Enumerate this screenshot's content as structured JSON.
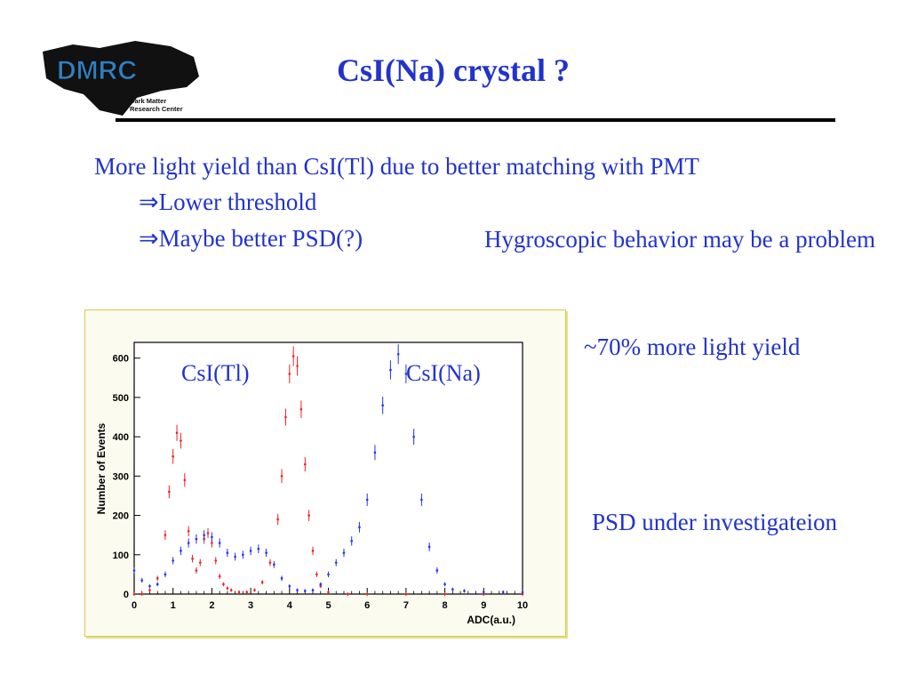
{
  "slide": {
    "title": "CsI(Na) crystal ?",
    "logo_text": "DMRC",
    "logo_subtitle_1": "Dark Matter",
    "logo_subtitle_2": "Research Center",
    "line1": "More light yield than CsI(Tl) due to better matching with PMT",
    "line2": "⇒Lower threshold",
    "line3": "⇒Maybe better PSD(?)",
    "hygro": "Hygroscopic behavior may be a problem",
    "yield": "~70% more light yield",
    "psd": "PSD under investigateion"
  },
  "colors": {
    "text": "#2233cc",
    "series_tl": "#ee2222",
    "series_na": "#2233ee",
    "logo_blue": "#2f7fc0"
  },
  "chart_data": {
    "type": "scatter",
    "xlabel": "ADC(a.u.)",
    "ylabel": "Number of Events",
    "xlim": [
      0,
      10
    ],
    "ylim": [
      0,
      640
    ],
    "xticks": [
      "0",
      "1",
      "2",
      "3",
      "4",
      "5",
      "6",
      "7",
      "8",
      "9",
      "10"
    ],
    "yticks": [
      "0",
      "100",
      "200",
      "300",
      "400",
      "500",
      "600"
    ],
    "annotations": [
      "CsI(Tl)",
      "CsI(Na)"
    ],
    "series": [
      {
        "name": "CsI(Tl)",
        "x": [
          0.0,
          0.2,
          0.4,
          0.6,
          0.8,
          0.9,
          1.0,
          1.1,
          1.2,
          1.3,
          1.4,
          1.5,
          1.6,
          1.7,
          1.8,
          1.9,
          2.0,
          2.1,
          2.2,
          2.3,
          2.4,
          2.5,
          2.7,
          2.9,
          3.1,
          3.3,
          3.5,
          3.7,
          3.8,
          3.9,
          4.0,
          4.1,
          4.2,
          4.3,
          4.4,
          4.5,
          4.6,
          4.7,
          4.8,
          5.0,
          5.5,
          6.0,
          7.0,
          8.0,
          9.0,
          10.0
        ],
        "y": [
          0,
          0,
          10,
          40,
          150,
          260,
          350,
          410,
          390,
          290,
          160,
          90,
          60,
          80,
          140,
          155,
          130,
          85,
          45,
          25,
          15,
          10,
          5,
          5,
          10,
          30,
          80,
          190,
          300,
          450,
          560,
          605,
          580,
          470,
          330,
          200,
          110,
          50,
          20,
          5,
          0,
          0,
          0,
          0,
          0,
          0
        ]
      },
      {
        "name": "CsI(Na)",
        "x": [
          0.0,
          0.2,
          0.4,
          0.6,
          0.8,
          1.0,
          1.2,
          1.4,
          1.6,
          1.8,
          2.0,
          2.2,
          2.4,
          2.6,
          2.8,
          3.0,
          3.2,
          3.4,
          3.6,
          3.8,
          4.0,
          4.2,
          4.4,
          4.6,
          4.8,
          5.0,
          5.2,
          5.4,
          5.6,
          5.8,
          6.0,
          6.2,
          6.4,
          6.6,
          6.8,
          7.0,
          7.2,
          7.4,
          7.6,
          7.8,
          8.0,
          8.2,
          8.5,
          9.0,
          9.5,
          10.0
        ],
        "y": [
          60,
          35,
          20,
          25,
          50,
          85,
          110,
          130,
          140,
          150,
          145,
          130,
          105,
          95,
          100,
          110,
          115,
          105,
          75,
          40,
          20,
          10,
          8,
          10,
          25,
          50,
          80,
          105,
          135,
          170,
          240,
          360,
          480,
          570,
          610,
          560,
          400,
          240,
          120,
          60,
          25,
          12,
          8,
          5,
          5,
          5
        ]
      }
    ]
  }
}
